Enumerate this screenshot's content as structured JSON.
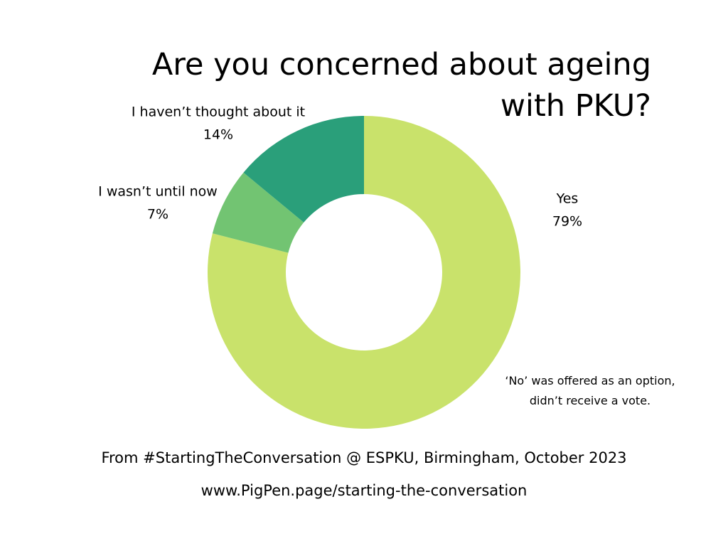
{
  "chart_data": {
    "type": "donut",
    "title": "Are you concerned about ageing with PKU?",
    "categories": [
      "Yes",
      "I wasn’t until now",
      "I haven’t thought about it"
    ],
    "values": [
      79,
      7,
      14
    ],
    "value_labels": [
      "79%",
      "7%",
      "14%"
    ],
    "colors": [
      "#c9e26b",
      "#72c472",
      "#2a9f7a"
    ],
    "annotation": "‘No’ was offered as an option, didn’t receive a vote.",
    "footer": [
      "From #StartingTheConversation @ ESPKU, Birmingham, October 2023",
      "www.PigPen.page/starting-the-conversation"
    ]
  }
}
